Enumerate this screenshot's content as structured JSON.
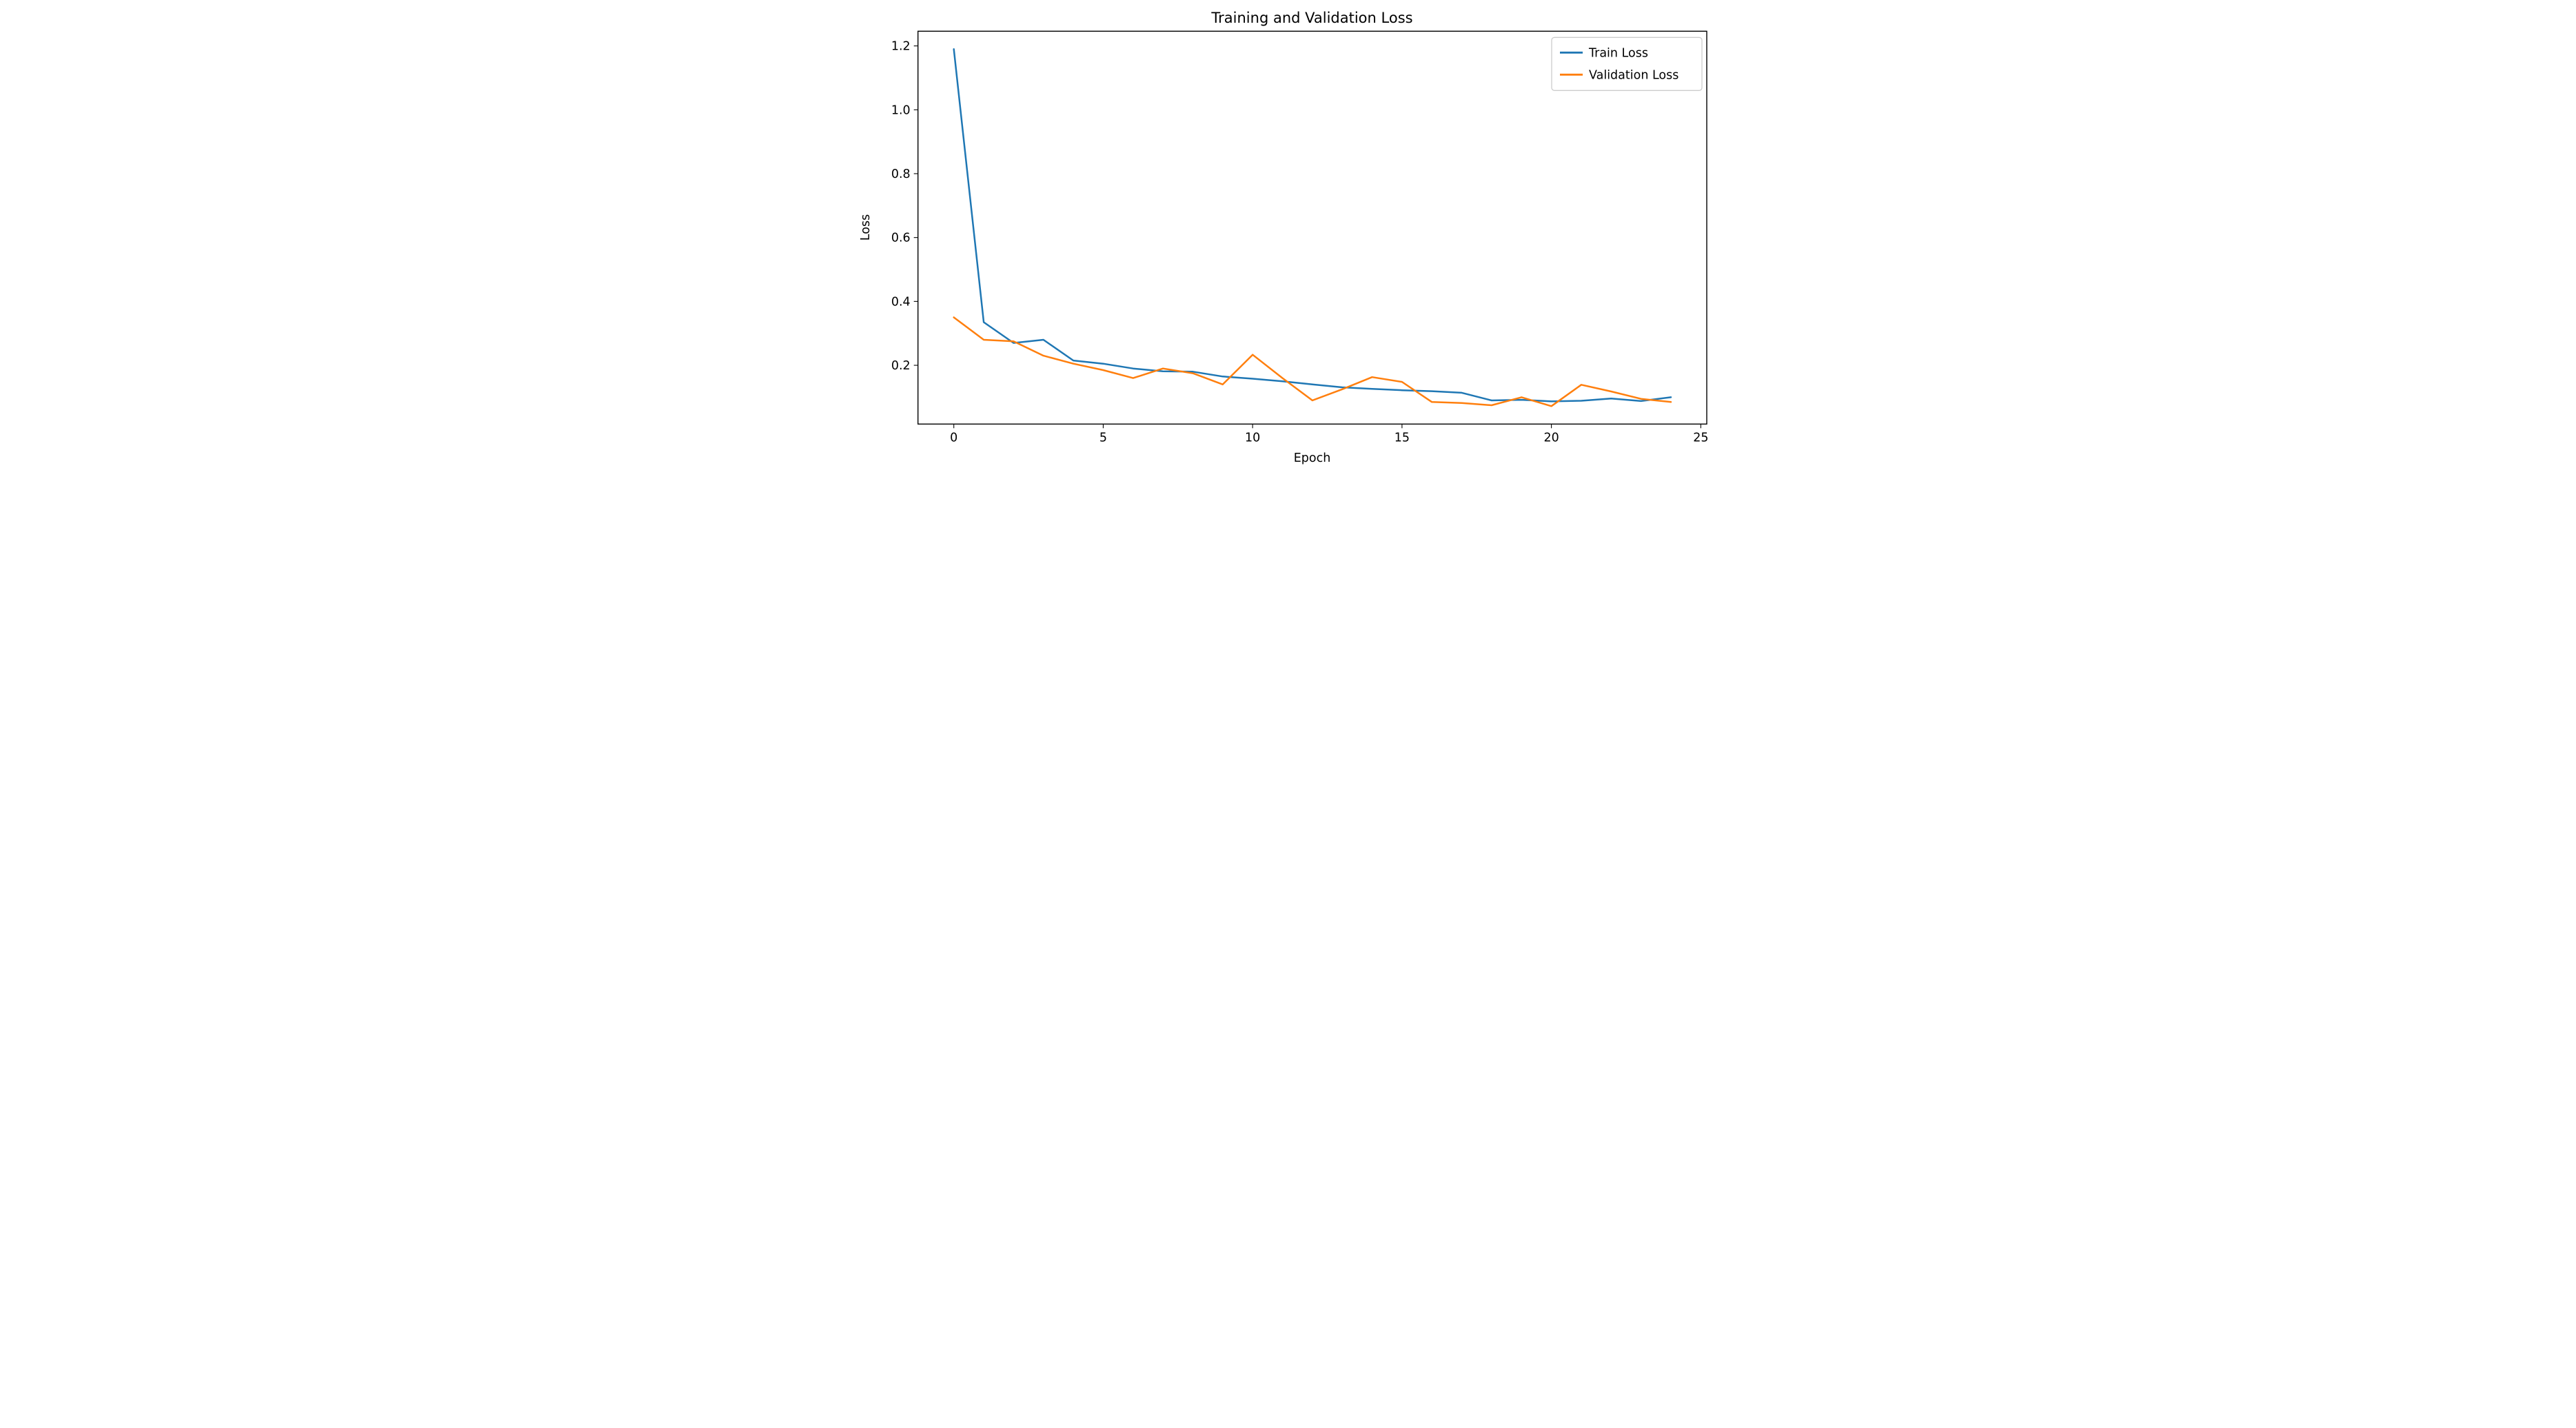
{
  "figure": {
    "background": "#ffffff",
    "spine_color": "#000000",
    "tick_color": "#000000"
  },
  "chart_data": {
    "type": "line",
    "title": "Training and Validation Loss",
    "xlabel": "Epoch",
    "ylabel": "Loss",
    "grid": false,
    "legend_position": "upper right",
    "legend_frame_color": "#cccccc",
    "xlim": [
      -1.2,
      25.2
    ],
    "ylim": [
      0.016,
      1.246
    ],
    "x_ticks": [
      0,
      5,
      10,
      15,
      20,
      25
    ],
    "y_ticks": [
      0.2,
      0.4,
      0.6,
      0.8,
      1.0,
      1.2
    ],
    "x": [
      0,
      1,
      2,
      3,
      4,
      5,
      6,
      7,
      8,
      9,
      10,
      11,
      12,
      13,
      14,
      15,
      16,
      17,
      18,
      19,
      20,
      21,
      22,
      23,
      24
    ],
    "series": [
      {
        "name": "Train Loss",
        "color": "#1f77b4",
        "values": [
          1.19,
          0.335,
          0.27,
          0.28,
          0.215,
          0.205,
          0.19,
          0.181,
          0.18,
          0.165,
          0.158,
          0.15,
          0.14,
          0.131,
          0.126,
          0.122,
          0.119,
          0.114,
          0.09,
          0.092,
          0.087,
          0.089,
          0.096,
          0.088,
          0.1
        ]
      },
      {
        "name": "Validation Loss",
        "color": "#ff7f0e",
        "values": [
          0.35,
          0.28,
          0.275,
          0.23,
          0.205,
          0.185,
          0.16,
          0.19,
          0.175,
          0.14,
          0.233,
          0.16,
          0.09,
          0.125,
          0.163,
          0.148,
          0.085,
          0.082,
          0.075,
          0.1,
          0.072,
          0.139,
          0.118,
          0.095,
          0.085
        ]
      }
    ]
  }
}
